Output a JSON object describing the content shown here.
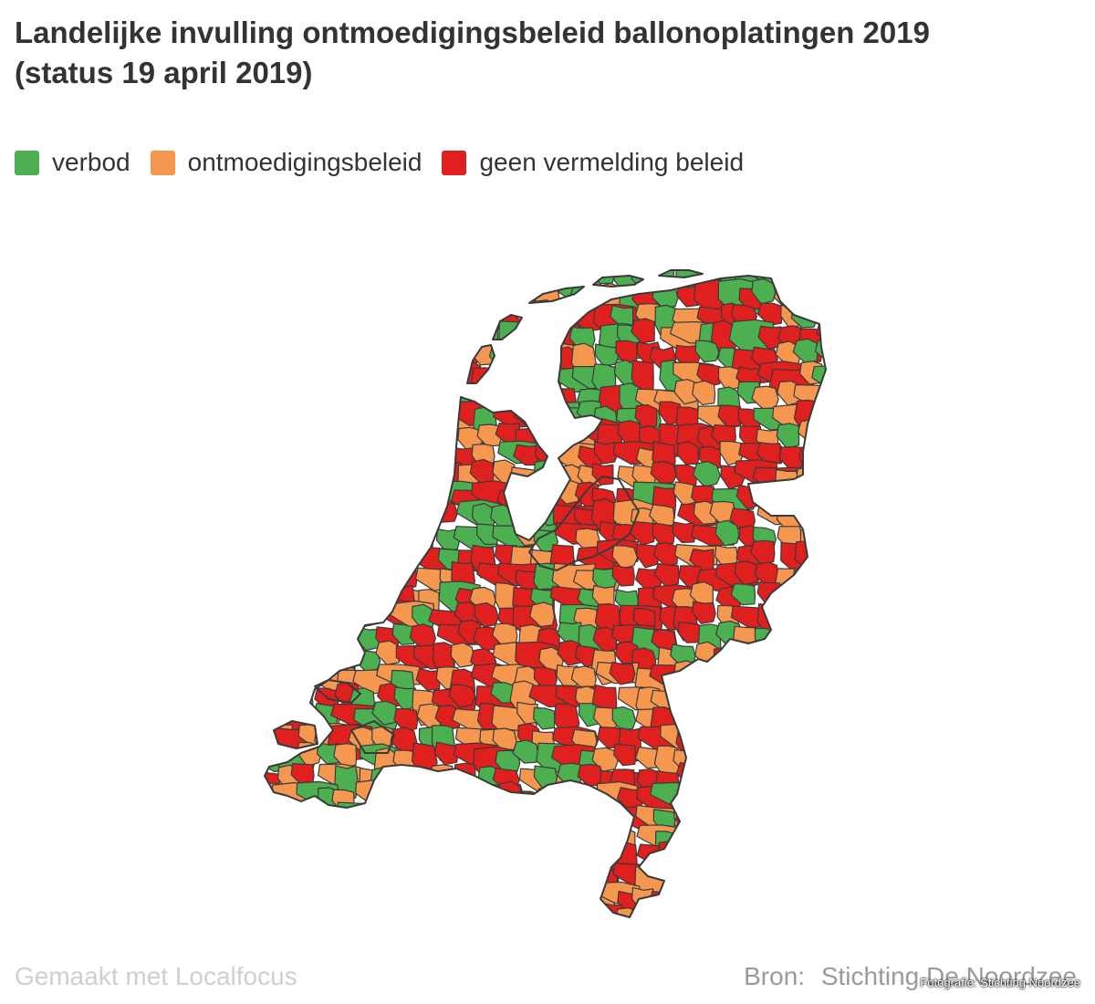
{
  "title": {
    "line1": "Landelijke invulling ontmoedigingsbeleid ballonoplatingen 2019",
    "line2": "(status 19 april 2019)"
  },
  "legend": [
    {
      "label": "verbod",
      "color": "#4caf50"
    },
    {
      "label": "ontmoedigingsbeleid",
      "color": "#f5974e"
    },
    {
      "label": "geen vermelding beleid",
      "color": "#e0201f"
    }
  ],
  "colors": {
    "verbod": "#4caf50",
    "ontmoedigingsbeleid": "#f5974e",
    "geen_vermelding_beleid": "#e0201f",
    "border": "#3a3a3a"
  },
  "footer": {
    "made_with": "Gemaakt met Localfocus",
    "source_label": "Bron:",
    "source_name": "Stichting De Noordzee",
    "photo_credit": "Fotografie: Stichting Noordzee"
  }
}
